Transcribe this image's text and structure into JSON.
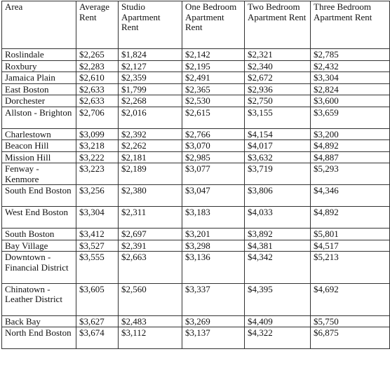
{
  "table": {
    "headers": [
      "Area",
      "Average Rent",
      "Studio Apartment Rent",
      "One Bedroom Apartment Rent",
      "Two Bedroom Apartment Rent",
      "Three Bedroom Apartment Rent"
    ],
    "rows": [
      [
        "Roslindale",
        "$2,265",
        "$1,824",
        "$2,142",
        "$2,321",
        "$2,785"
      ],
      [
        "Roxbury",
        "$2,283",
        "$2,127",
        "$2,195",
        "$2,340",
        "$2,432"
      ],
      [
        "Jamaica Plain",
        "$2,610",
        "$2,359",
        "$2,491",
        "$2,672",
        "$3,304"
      ],
      [
        "East Boston",
        "$2,633",
        "$1,799",
        "$2,365",
        "$2,936",
        "$2,824"
      ],
      [
        "Dorchester",
        "$2,633",
        "$2,268",
        "$2,530",
        "$2,750",
        "$3,600"
      ],
      [
        "Allston - Brighton",
        "$2,706",
        "$2,016",
        "$2,615",
        "$3,155",
        "$3,659"
      ],
      [
        "Charlestown",
        "$3,099",
        "$2,392",
        "$2,766",
        "$4,154",
        "$3,200"
      ],
      [
        "Beacon Hill",
        "$3,218",
        "$2,262",
        "$3,070",
        "$4,017",
        "$4,892"
      ],
      [
        "Mission Hill",
        "$3,222",
        "$2,181",
        "$2,985",
        "$3,632",
        "$4,887"
      ],
      [
        "Fenway - Kenmore",
        "$3,223",
        "$2,189",
        "$3,077",
        "$3,719",
        "$5,293"
      ],
      [
        "South End Boston",
        "$3,256",
        "$2,380",
        "$3,047",
        "$3,806",
        "$4,346"
      ],
      [
        "West End Boston",
        "$3,304",
        "$2,311",
        "$3,183",
        "$4,033",
        "$4,892"
      ],
      [
        "South Boston",
        "$3,412",
        "$2,697",
        "$3,201",
        "$3,892",
        "$5,801"
      ],
      [
        "Bay Village",
        "$3,527",
        "$2,391",
        "$3,298",
        "$4,381",
        "$4,517"
      ],
      [
        "Downtown - Financial District",
        "$3,555",
        "$2,663",
        "$3,136",
        "$4,342",
        "$5,213"
      ],
      [
        "Chinatown - Leather District",
        "$3,605",
        "$2,560",
        "$3,337",
        "$4,395",
        "$4,692"
      ],
      [
        "Back Bay",
        "$3,627",
        "$2,483",
        "$3,269",
        "$4,409",
        "$5,750"
      ],
      [
        "North End Boston",
        "$3,674",
        "$3,112",
        "$3,137",
        "$4,322",
        "$6,875"
      ]
    ]
  }
}
